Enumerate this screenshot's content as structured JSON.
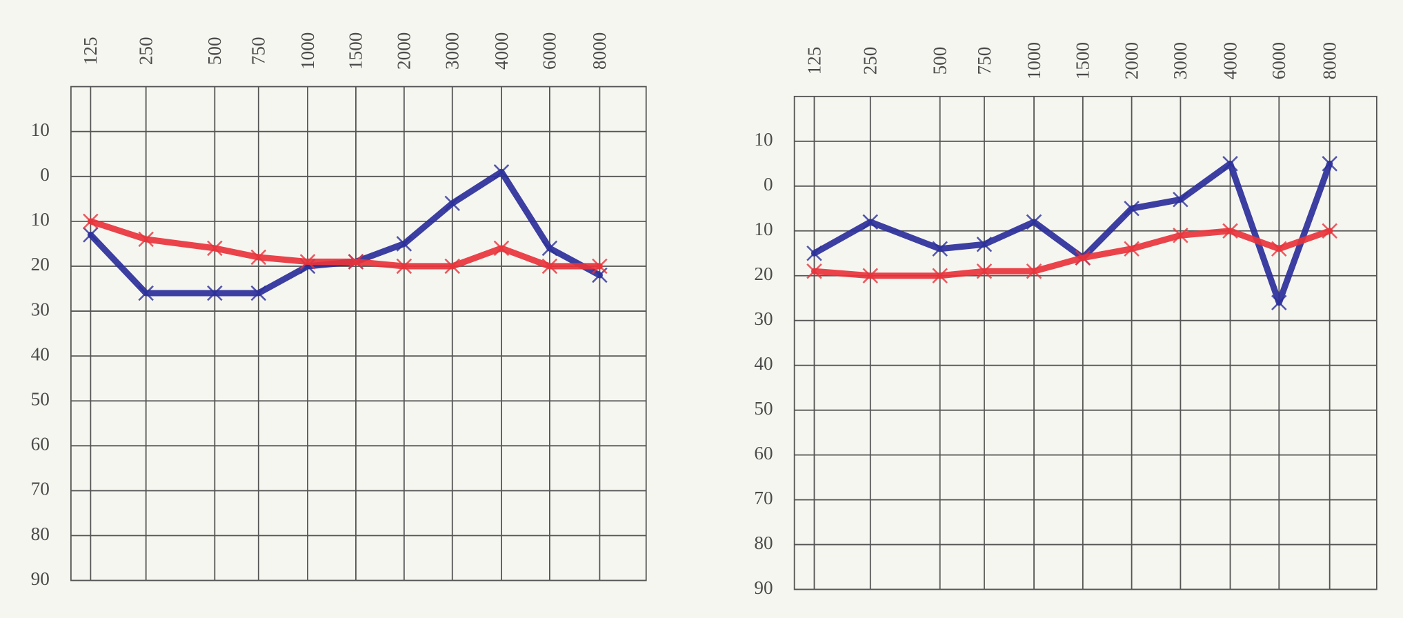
{
  "chart_data": [
    {
      "type": "line",
      "categories": [
        "125",
        "250",
        "500",
        "750",
        "1000",
        "1500",
        "2000",
        "3000",
        "4000",
        "6000",
        "8000"
      ],
      "series": [
        {
          "color": "#2b2f9a",
          "values": [
            13,
            26,
            26,
            26,
            20,
            19,
            15,
            6,
            -1,
            16,
            22
          ]
        },
        {
          "color": "#e8333b",
          "values": [
            10,
            14,
            16,
            18,
            19,
            19,
            20,
            20,
            16,
            20,
            20
          ]
        }
      ],
      "ylim": [
        90,
        -20
      ],
      "yticks": [
        {
          "value": -10,
          "label": "10"
        },
        0,
        10,
        20,
        30,
        40,
        50,
        60,
        70,
        80,
        90
      ],
      "grid": true
    },
    {
      "type": "line",
      "categories": [
        "125",
        "250",
        "500",
        "750",
        "1000",
        "1500",
        "2000",
        "3000",
        "4000",
        "6000",
        "8000"
      ],
      "series": [
        {
          "color": "#2b2f9a",
          "values": [
            15,
            8,
            14,
            13,
            8,
            16,
            5,
            3,
            -5,
            26,
            -5
          ]
        },
        {
          "color": "#e8333b",
          "values": [
            19,
            20,
            20,
            19,
            19,
            16,
            14,
            11,
            10,
            14,
            10
          ]
        }
      ],
      "ylim": [
        90,
        -20
      ],
      "yticks": [
        {
          "value": -10,
          "label": "10"
        },
        0,
        10,
        20,
        30,
        40,
        50,
        60,
        70,
        80,
        90
      ],
      "grid": true
    }
  ]
}
